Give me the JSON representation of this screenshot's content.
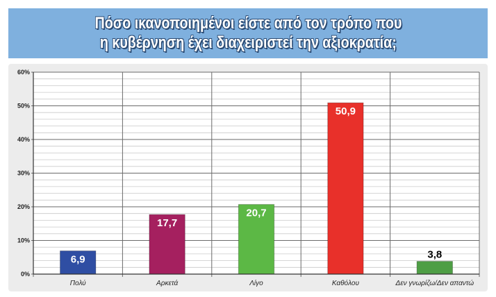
{
  "header": {
    "title_line1": "Πόσο ικανοποιημένοι είστε από τον τρόπο που",
    "title_line2": "η κυβέρνηση  έχει διαχειριστεί την αξιοκρατία;"
  },
  "chart_data": {
    "type": "bar",
    "title": "Πόσο ικανοποιημένοι είστε από τον τρόπο που η κυβέρνηση  έχει διαχειριστεί την αξιοκρατία;",
    "categories": [
      "Πολύ",
      "Αρκετά",
      "Λίγο",
      "Καθόλου",
      "Δεν γνωρίζω/Δεν απαντώ"
    ],
    "values": [
      6.9,
      17.7,
      20.7,
      50.9,
      3.8
    ],
    "value_labels": [
      "6,9",
      "17,7",
      "20,7",
      "50,9",
      "3,8"
    ],
    "colors": [
      "#2f4ea3",
      "#a5205f",
      "#5cb845",
      "#e8302a",
      "#4e9e45"
    ],
    "label_colors": [
      "#ffffff",
      "#ffffff",
      "#ffffff",
      "#ffffff",
      "#000000"
    ],
    "yticks": [
      0,
      10,
      20,
      30,
      40,
      50,
      60
    ],
    "ytick_labels": [
      "0%",
      "10%",
      "20%",
      "30%",
      "40%",
      "50%",
      "60%"
    ],
    "ylim": [
      0,
      60
    ],
    "xlabel": "",
    "ylabel": "",
    "grid": true
  }
}
